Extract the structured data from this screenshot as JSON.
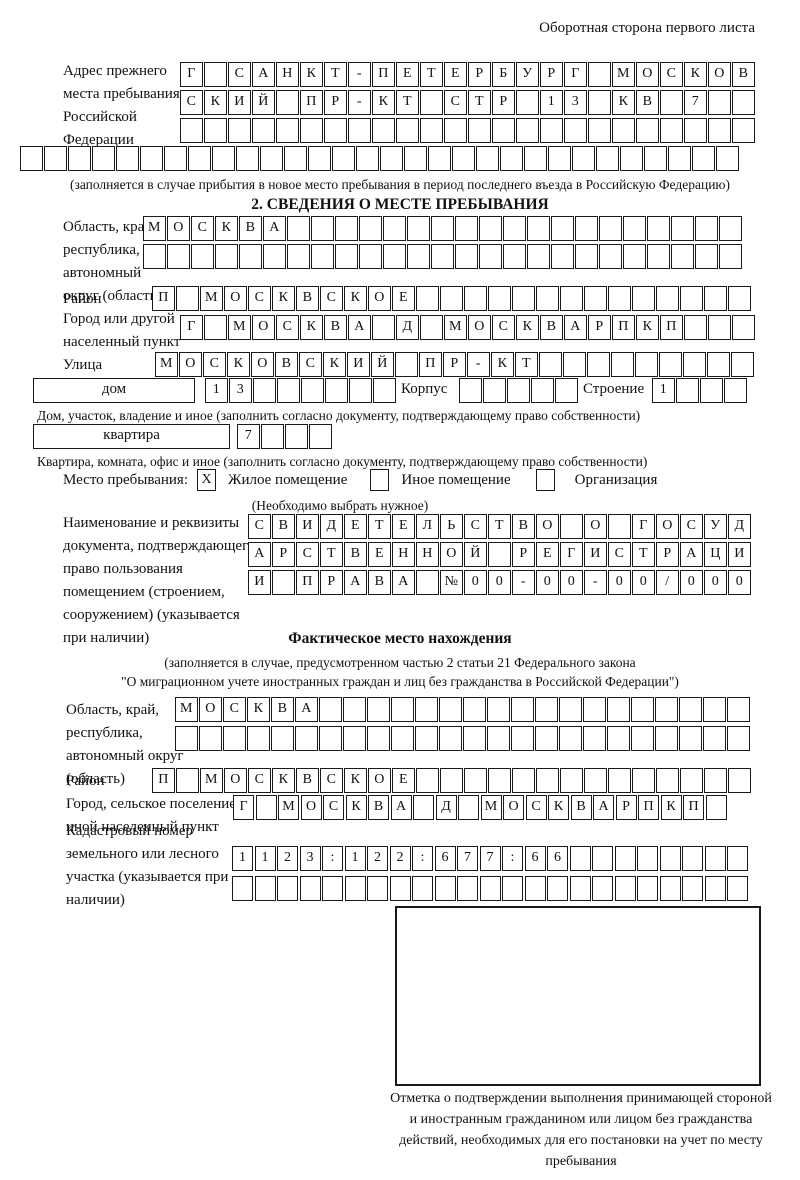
{
  "header": {
    "right_note": "Оборотная сторона первого листа"
  },
  "prev_address": {
    "label": "Адрес прежнего места пребывания в Российской Федерации",
    "rows": [
      {
        "t": "Г САНКТ-ПЕТЕРБУРГ МОСКОВ",
        "n": 24
      },
      {
        "t": "СКИЙ ПР-КТ СТР 13 КВ 7",
        "n": 24
      },
      {
        "t": "",
        "n": 24
      },
      {
        "t": "",
        "n": 30
      }
    ],
    "note": "(заполняется в случае прибытия в новое место пребывания в период последнего въезда в Российскую Федерацию)"
  },
  "section2": {
    "title": "2. СВЕДЕНИЯ О МЕСТЕ ПРЕБЫВАНИЯ",
    "region": {
      "label": "Область, край, республика, автономный округ (область)",
      "rows": [
        {
          "t": "МОСКВА",
          "n": 25
        },
        {
          "t": "",
          "n": 25
        }
      ]
    },
    "district": {
      "label": "Район",
      "row": {
        "t": "П МОСКВСКОЕ",
        "n": 25
      }
    },
    "city": {
      "label": "Город или другой населенный пункт",
      "row": {
        "t": "Г МОСКВА Д МОСКВАРПКП",
        "n": 24
      }
    },
    "street": {
      "label": "Улица",
      "row": {
        "t": "МОСКОВСКИЙ ПР-КТ",
        "n": 25
      }
    },
    "house": {
      "box_label": "дом",
      "cells": {
        "t": "13",
        "n": 8
      },
      "korpus_label": "Корпус",
      "korpus_cells": {
        "t": "",
        "n": 5
      },
      "stroenie_label": "Строение",
      "stroenie_cells": {
        "t": "1",
        "n": 4
      },
      "caption": "Дом, участок, владение и иное (заполнить согласно документу, подтверждающему право собственности)"
    },
    "apartment": {
      "box_label": "квартира",
      "cells": {
        "t": "7",
        "n": 4
      },
      "caption": "Квартира, комната, офис и иное (заполнить согласно документу, подтверждающему право собственности)"
    },
    "stay_type": {
      "label": "Место пребывания:",
      "options": [
        {
          "label": "Жилое помещение",
          "mark": "X"
        },
        {
          "label": "Иное помещение",
          "mark": ""
        },
        {
          "label": "Организация",
          "mark": ""
        }
      ],
      "note": "(Необходимо выбрать нужное)"
    },
    "document": {
      "label": "Наименование и реквизиты документа, подтверждающего право пользования помещением (строением, сооружением) (указывается при наличии)",
      "rows": [
        {
          "t": "СВИДЕТЕЛЬСТВО О ГОСУД",
          "n": 21
        },
        {
          "t": "АРСТВЕННОЙ РЕГИСТРАЦИ",
          "n": 21
        },
        {
          "t": "И ПРАВА №00-00-00/000",
          "n": 21
        }
      ]
    }
  },
  "actual_location": {
    "title": "Фактическое место нахождения",
    "note_line1": "(заполняется в случае, предусмотренном частью 2 статьи 21 Федерального закона",
    "note_line2": "\"О миграционном учете иностранных граждан и лиц без гражданства в Российской Федерации\")",
    "region": {
      "label": "Область, край, республика, автономный округ (область)",
      "rows": [
        {
          "t": "МОСКВА",
          "n": 24
        },
        {
          "t": "",
          "n": 24
        }
      ]
    },
    "district": {
      "label": "Район",
      "row": {
        "t": "П МОСКВСКОЕ",
        "n": 25
      }
    },
    "city": {
      "label": "Город, сельское поселение, иной населенный пункт",
      "row": {
        "t": "Г МОСКВА Д МОСКВАРПКП",
        "n": 22
      }
    },
    "cadastral": {
      "label": "Кадастровый номер земельного или лесного участка (указывается при наличии)",
      "rows": [
        {
          "t": "1123:122:677:66",
          "n": 23
        },
        {
          "t": "",
          "n": 23
        }
      ]
    }
  },
  "stamp": {
    "caption": "Отметка о подтверждении выполнения принимающей стороной и иностранным гражданином или лицом без гражданства действий, необходимых для его постановки на учет по месту пребывания"
  }
}
